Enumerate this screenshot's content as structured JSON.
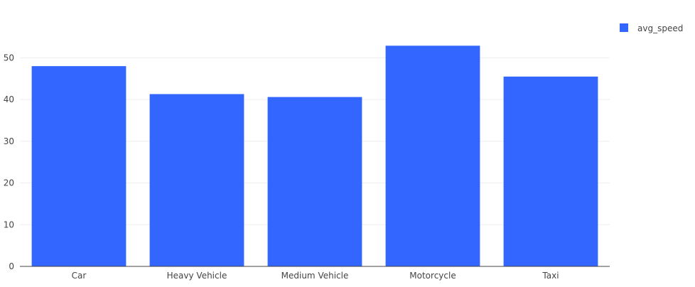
{
  "chart_data": {
    "type": "bar",
    "title": "",
    "xlabel": "",
    "ylabel": "",
    "categories": [
      "Car",
      "Heavy Vehicle",
      "Medium Vehicle",
      "Motorcycle",
      "Taxi"
    ],
    "series": [
      {
        "name": "avg_speed",
        "values": [
          48.0,
          41.3,
          40.6,
          52.9,
          45.5
        ],
        "color": "#3366ff"
      }
    ],
    "ylim": [
      0,
      55
    ],
    "yticks": [
      0,
      10,
      20,
      30,
      40,
      50
    ],
    "grid": true,
    "legend_position": "top-right"
  }
}
